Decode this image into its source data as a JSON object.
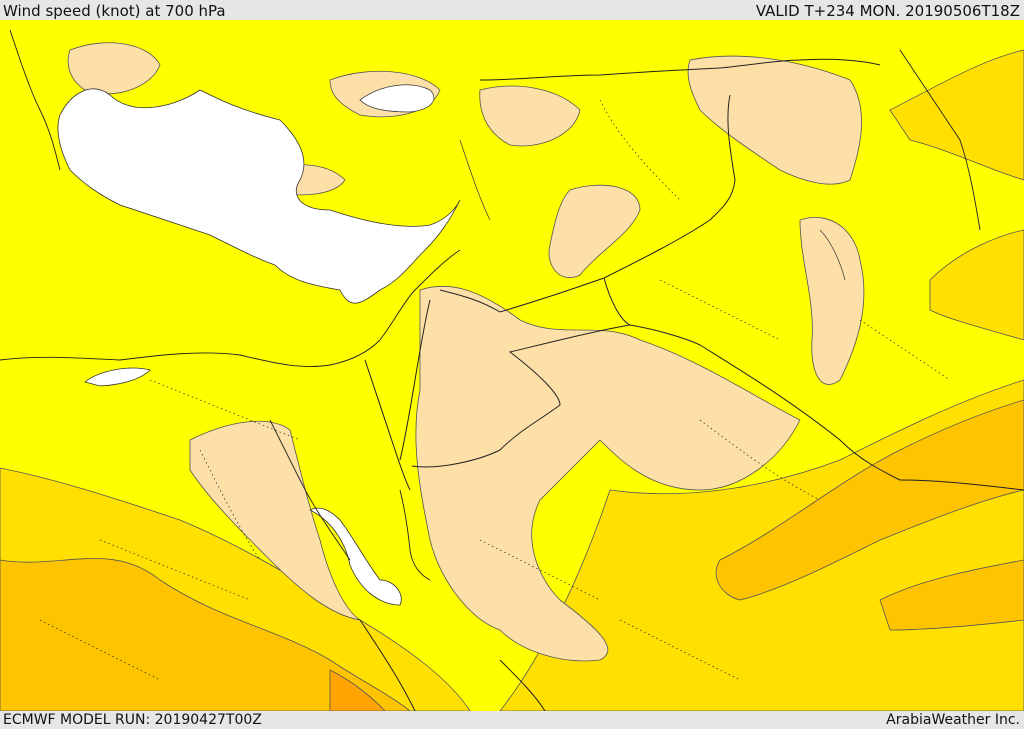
{
  "header": {
    "title": "Wind speed (knot) at 700 hPa",
    "valid_time": "VALID T+234 MON. 20190506T18Z"
  },
  "footer": {
    "model_run": "ECMWF MODEL RUN: 20190427T00Z",
    "credit": "ArabiaWeather Inc."
  },
  "colors": {
    "sea_white": "#ffffff",
    "band_peach": "#fde0a8",
    "band_yellow": "#ffff00",
    "band_gold": "#ffe000",
    "band_light_orange": "#ffc400",
    "band_orange": "#ffa400",
    "contour_line": "#444444",
    "border_line": "#222222"
  }
}
